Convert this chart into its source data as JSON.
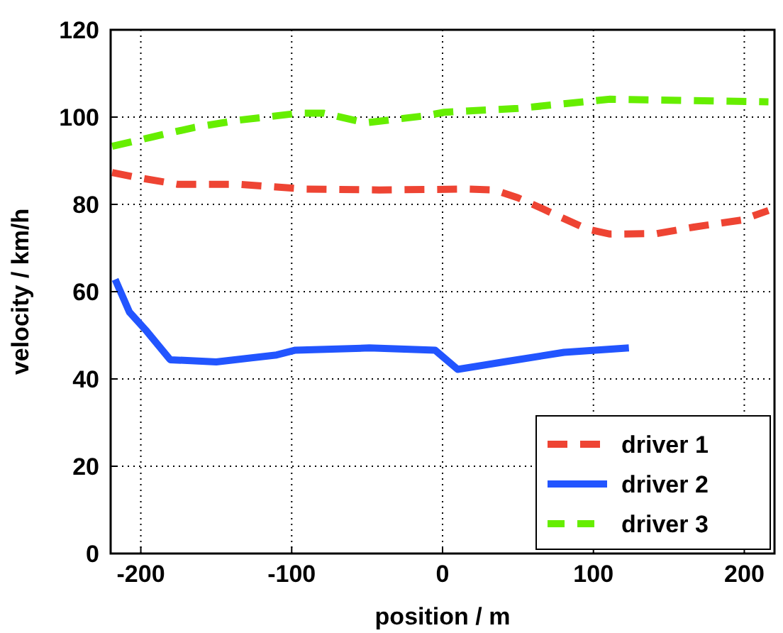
{
  "chart_data": {
    "type": "line",
    "xlabel": "position / m",
    "ylabel": "velocity / km/h",
    "xlim": [
      -220,
      220
    ],
    "xticks": [
      -200,
      -100,
      0,
      100,
      200
    ],
    "ylim": [
      0,
      120
    ],
    "yticks": [
      0,
      20,
      40,
      60,
      80,
      100,
      120
    ],
    "grid": true,
    "legend": "bottom right",
    "series": [
      {
        "name": "driver 1",
        "color": "#ee4433",
        "line_style": "dashed",
        "x": [
          -219,
          -203,
          -175.5,
          -135,
          -91,
          -42,
          16,
          34.5,
          50,
          65,
          77.5,
          96,
          111,
          142,
          166.6,
          198,
          216
        ],
        "values": [
          87.3,
          86.2,
          84.6,
          84.6,
          83.5,
          83.3,
          83.5,
          83.3,
          81.5,
          79.2,
          77.2,
          74.3,
          73.2,
          73.3,
          74.8,
          76.4,
          78.6
        ]
      },
      {
        "name": "driver 2",
        "color": "#2255ff",
        "line_style": "solid",
        "x": [
          -217,
          -207.5,
          -196,
          -180.5,
          -150,
          -110,
          -97.5,
          -48.5,
          -5,
          10,
          40.5,
          80.5,
          123.5
        ],
        "values": [
          62.8,
          55.3,
          50.9,
          44.4,
          43.9,
          45.5,
          46.6,
          47.1,
          46.6,
          42.2,
          43.9,
          46.1,
          47.1
        ]
      },
      {
        "name": "driver 3",
        "color": "#66ee00",
        "line_style": "dashed",
        "x": [
          -219,
          -193,
          -165,
          -135,
          -95,
          -79,
          -51,
          -11.5,
          1,
          50,
          111,
          216
        ],
        "values": [
          93.3,
          95.4,
          97.6,
          99.3,
          100.9,
          100.9,
          98.7,
          100.3,
          101.1,
          102,
          104.1,
          103.5
        ]
      }
    ]
  }
}
